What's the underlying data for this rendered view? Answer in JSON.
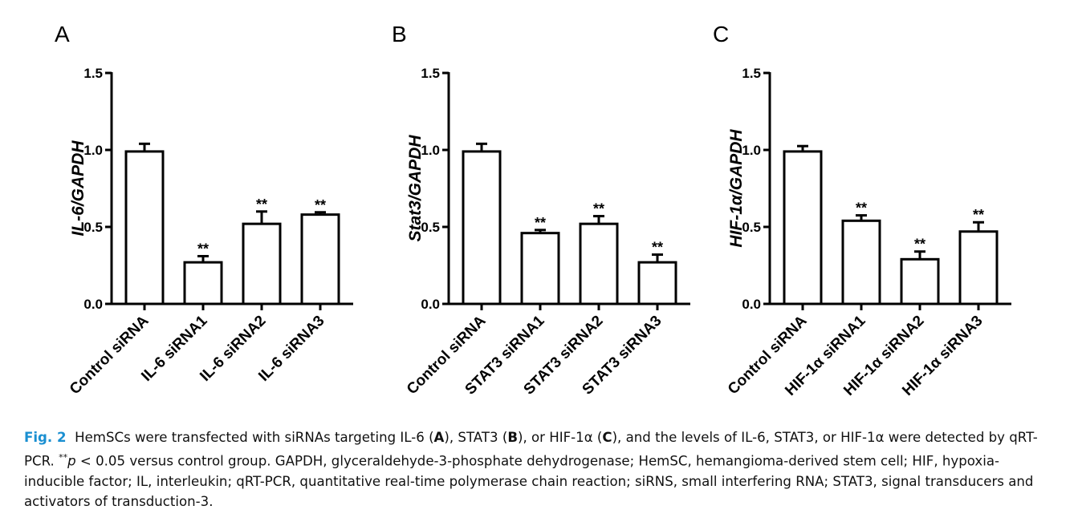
{
  "chart_data": [
    {
      "type": "bar",
      "panel_label": "A",
      "ylabel": "IL-6/GAPDH",
      "ylim": [
        0,
        1.5
      ],
      "yticks": [
        "0.0",
        "0.5",
        "1.0",
        "1.5"
      ],
      "categories": [
        "Control siRNA",
        "IL-6 siRNA1",
        "IL-6 siRNA2",
        "IL-6 siRNA3"
      ],
      "values": [
        0.99,
        0.27,
        0.52,
        0.58
      ],
      "errors": [
        0.05,
        0.04,
        0.08,
        0.015
      ],
      "significance": [
        "",
        "**",
        "**",
        "**"
      ]
    },
    {
      "type": "bar",
      "panel_label": "B",
      "ylabel": "Stat3/GAPDH",
      "ylim": [
        0,
        1.5
      ],
      "yticks": [
        "0.0",
        "0.5",
        "1.0",
        "1.5"
      ],
      "categories": [
        "Control siRNA",
        "STAT3 siRNA1",
        "STAT3 siRNA2",
        "STAT3 siRNA3"
      ],
      "values": [
        0.99,
        0.46,
        0.52,
        0.27
      ],
      "errors": [
        0.05,
        0.02,
        0.05,
        0.05
      ],
      "significance": [
        "",
        "**",
        "**",
        "**"
      ]
    },
    {
      "type": "bar",
      "panel_label": "C",
      "ylabel": "HIF-1α/GAPDH",
      "ylim": [
        0,
        1.5
      ],
      "yticks": [
        "0.0",
        "0.5",
        "1.0",
        "1.5"
      ],
      "categories": [
        "Control siRNA",
        "HIF-1α siRNA1",
        "HIF-1α siRNA2",
        "HIF-1α siRNA3"
      ],
      "values": [
        0.99,
        0.54,
        0.29,
        0.47
      ],
      "errors": [
        0.035,
        0.035,
        0.05,
        0.06
      ],
      "significance": [
        "",
        "**",
        "**",
        "**"
      ]
    }
  ],
  "caption": {
    "fig_label": "Fig. 2",
    "parts": [
      "HemSCs were transfected with siRNAs targeting IL-6 (",
      "A",
      "), STAT3 (",
      "B",
      "), or HIF-1α (",
      "C",
      "), and the levels of IL-6, STAT3, or HIF-1α were detected by qRT-PCR. ",
      "**",
      "p",
      " < 0.05 versus control group. GAPDH, glyceraldehyde-3-phosphate dehydrogenase; HemSC, hemangioma-derived stem cell; HIF, hypoxia-inducible factor; IL, interleukin; qRT-PCR, quantitative real-time polymerase chain reaction; siRNS, small interfering RNA; STAT3, signal transducers and activators of transduction-3."
    ]
  }
}
